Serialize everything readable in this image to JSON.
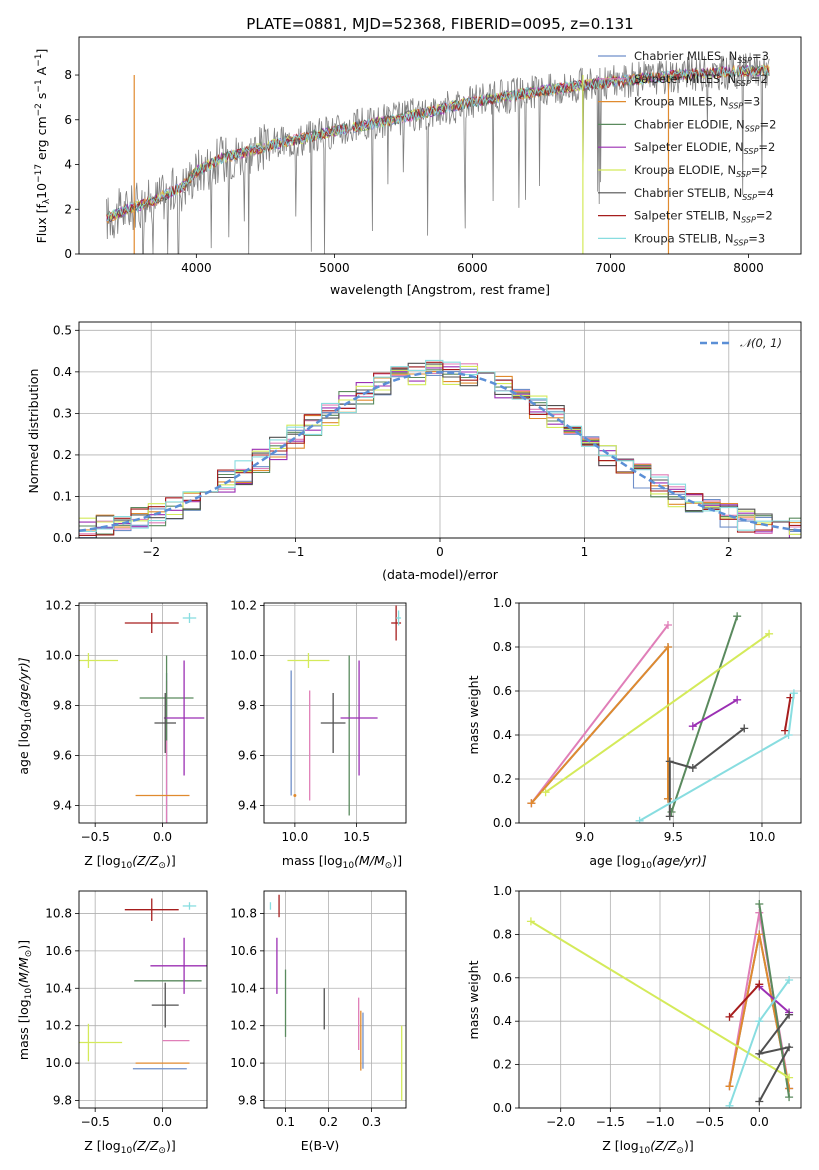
{
  "colors": {
    "chabrier_miles": "#6f8fc9",
    "salpeter_miles": "#e07fb8",
    "kroupa_miles": "#e08a2e",
    "chabrier_elodie": "#5a8a5e",
    "salpeter_elodie": "#9b2fb3",
    "kroupa_elodie": "#d4ea5a",
    "chabrier_stelib": "#505050",
    "salpeter_stelib": "#a61d1d",
    "kroupa_stelib": "#88dde0",
    "data": "#808080",
    "gauss": "#5b8fd6",
    "grid": "#b0b0b0"
  },
  "legend": [
    {
      "label": "Chabrier MILES, N",
      "sub": "SSP",
      "n": "=3",
      "color": "#6f8fc9"
    },
    {
      "label": "Salpeter MILES, N",
      "sub": "SSP",
      "n": "=2",
      "color": "#e07fb8"
    },
    {
      "label": "Kroupa MILES, N",
      "sub": "SSP",
      "n": "=3",
      "color": "#e08a2e"
    },
    {
      "label": "Chabrier ELODIE, N",
      "sub": "SSP",
      "n": "=2",
      "color": "#5a8a5e"
    },
    {
      "label": "Salpeter ELODIE, N",
      "sub": "SSP",
      "n": "=2",
      "color": "#9b2fb3"
    },
    {
      "label": "Kroupa ELODIE, N",
      "sub": "SSP",
      "n": "=2",
      "color": "#d4ea5a"
    },
    {
      "label": "Chabrier STELIB, N",
      "sub": "SSP",
      "n": "=4",
      "color": "#505050"
    },
    {
      "label": "Salpeter STELIB, N",
      "sub": "SSP",
      "n": "=2",
      "color": "#a61d1d"
    },
    {
      "label": "Kroupa STELIB, N",
      "sub": "SSP",
      "n": "=3",
      "color": "#88dde0"
    }
  ],
  "chart_data": [
    {
      "id": "spectrum",
      "type": "line",
      "title": "PLATE=0881, MJD=52368, FIBERID=0095, z=0.131",
      "xlabel": "wavelength [Angstrom, rest frame]",
      "ylabel": "Flux [f",
      "ylabel_parts": {
        "pre": "Flux [f",
        "sub": "λ",
        "mid": "10",
        "sup1": "−17",
        "unit": " erg cm",
        "sup2": "−2",
        "unit2": " s",
        "sup3": "−1",
        "unit3": " A",
        "sup4": "−1",
        "post": "]"
      },
      "xlim": [
        3150,
        8380
      ],
      "ylim": [
        0,
        9.7
      ],
      "xticks": [
        4000,
        5000,
        6000,
        7000,
        8000
      ],
      "yticks": [
        0,
        2,
        4,
        6,
        8
      ],
      "continuum": [
        [
          3350,
          1.6
        ],
        [
          3500,
          2.0
        ],
        [
          3700,
          2.4
        ],
        [
          3900,
          3.0
        ],
        [
          4000,
          3.7
        ],
        [
          4200,
          4.3
        ],
        [
          4500,
          4.8
        ],
        [
          5000,
          5.5
        ],
        [
          5500,
          6.1
        ],
        [
          6000,
          6.8
        ],
        [
          6500,
          7.3
        ],
        [
          7000,
          7.7
        ],
        [
          7500,
          8.0
        ],
        [
          8000,
          8.2
        ],
        [
          8150,
          8.2
        ]
      ]
    },
    {
      "id": "residuals",
      "type": "step",
      "xlabel": "(data-model)/error",
      "ylabel": "Normed distribution",
      "legend": "𝒩(0, 1)",
      "xlim": [
        -2.5,
        2.5
      ],
      "ylim": [
        0,
        0.52
      ],
      "xticks": [
        -2,
        -1,
        0,
        1,
        2
      ],
      "xticklabels": [
        "−2",
        "−1",
        "0",
        "1",
        "2"
      ],
      "yticks": [
        0,
        0.1,
        0.2,
        0.3,
        0.4,
        0.5
      ],
      "yticklabels": [
        "0.0",
        "0.1",
        "0.2",
        "0.3",
        "0.4",
        "0.5"
      ]
    },
    {
      "id": "age_vs_Z",
      "type": "errorbar",
      "xlabel": "Z [log",
      "xlabel_parts": {
        "pre": "Z [log",
        "sub": "10",
        "mid": "(Z/Z",
        "sub2": "⊙",
        "post": ")]"
      },
      "ylabel_parts": {
        "pre": "age  [log",
        "sub": "10",
        "post": "(age/yr)]"
      },
      "xlim": [
        -0.62,
        0.33
      ],
      "ylim": [
        9.33,
        10.21
      ],
      "xticks": [
        -0.5,
        0.0
      ],
      "xticklabels": [
        "−0.5",
        "0.0"
      ],
      "yticks": [
        9.4,
        9.6,
        9.8,
        10.0,
        10.2
      ],
      "yticklabels": [
        "9.4",
        "9.6",
        "9.8",
        "10.0",
        "10.2"
      ],
      "points": [
        {
          "model": "chabrier_miles",
          "x": 0.03,
          "xerr": 0.0,
          "y": 9.6,
          "yerr": 0.33
        },
        {
          "model": "salpeter_miles",
          "x": 0.03,
          "xerr": 0.0,
          "y": 9.6,
          "yerr": 0.3
        },
        {
          "model": "kroupa_miles",
          "x": 0.0,
          "xerr": 0.2,
          "y": 9.44,
          "yerr": 0.0
        },
        {
          "model": "chabrier_elodie",
          "x": 0.03,
          "xerr": 0.2,
          "y": 9.83,
          "yerr": 0.17
        },
        {
          "model": "salpeter_elodie",
          "x": 0.16,
          "xerr": 0.15,
          "y": 9.75,
          "yerr": 0.23
        },
        {
          "model": "kroupa_elodie",
          "x": -0.55,
          "xerr": 0.22,
          "y": 9.98,
          "yerr": 0.03
        },
        {
          "model": "chabrier_stelib",
          "x": 0.02,
          "xerr": 0.08,
          "y": 9.73,
          "yerr": 0.12
        },
        {
          "model": "salpeter_stelib",
          "x": -0.08,
          "xerr": 0.2,
          "y": 10.13,
          "yerr": 0.04
        },
        {
          "model": "kroupa_stelib",
          "x": 0.2,
          "xerr": 0.05,
          "y": 10.15,
          "yerr": 0.02
        }
      ]
    },
    {
      "id": "age_vs_mass",
      "type": "errorbar",
      "xlabel_parts": {
        "pre": "mass [log",
        "sub": "10",
        "post": "(M/M",
        "sub2": "⊙",
        "post2": ")]"
      },
      "xlim": [
        9.75,
        10.9
      ],
      "ylim": [
        9.33,
        10.21
      ],
      "xticks": [
        10.0,
        10.5
      ],
      "xticklabels": [
        "10.0",
        "10.5"
      ],
      "yticks": [
        9.4,
        9.6,
        9.8,
        10.0,
        10.2
      ],
      "yticklabels": [
        "9.4",
        "9.6",
        "9.8",
        "10.0",
        "10.2"
      ],
      "points": [
        {
          "model": "chabrier_miles",
          "x": 9.97,
          "xerr": 0.0,
          "y": 9.69,
          "yerr": 0.25
        },
        {
          "model": "salpeter_miles",
          "x": 10.12,
          "xerr": 0.0,
          "y": 9.64,
          "yerr": 0.22
        },
        {
          "model": "kroupa_miles",
          "x": 10.0,
          "xerr": 0.0,
          "y": 9.44,
          "yerr": 0.0
        },
        {
          "model": "chabrier_elodie",
          "x": 10.44,
          "xerr": 0.0,
          "y": 9.68,
          "yerr": 0.32
        },
        {
          "model": "salpeter_elodie",
          "x": 10.52,
          "xerr": 0.15,
          "y": 9.75,
          "yerr": 0.23
        },
        {
          "model": "kroupa_elodie",
          "x": 10.11,
          "xerr": 0.17,
          "y": 9.98,
          "yerr": 0.03
        },
        {
          "model": "chabrier_stelib",
          "x": 10.31,
          "xerr": 0.1,
          "y": 9.73,
          "yerr": 0.12
        },
        {
          "model": "salpeter_stelib",
          "x": 10.82,
          "xerr": 0.04,
          "y": 10.13,
          "yerr": 0.07
        },
        {
          "model": "kroupa_stelib",
          "x": 10.84,
          "xerr": 0.02,
          "y": 10.15,
          "yerr": 0.03
        }
      ]
    },
    {
      "id": "weight_vs_age",
      "type": "line",
      "xlabel_parts": {
        "pre": "age  [log",
        "sub": "10",
        "post": "(age/yr)]"
      },
      "ylabel": "mass weight",
      "xlim": [
        8.63,
        10.22
      ],
      "ylim": [
        0,
        1.0
      ],
      "xticks": [
        9.0,
        9.5,
        10.0
      ],
      "xticklabels": [
        "9.0",
        "9.5",
        "10.0"
      ],
      "yticks": [
        0,
        0.2,
        0.4,
        0.6,
        0.8,
        1.0
      ],
      "yticklabels": [
        "0.0",
        "0.2",
        "0.4",
        "0.6",
        "0.8",
        "1.0"
      ],
      "series": [
        {
          "model": "chabrier_miles",
          "x": [
            8.7,
            9.47,
            9.47
          ],
          "y": [
            0.09,
            0.8,
            0.11
          ]
        },
        {
          "model": "salpeter_miles",
          "x": [
            8.7,
            9.47
          ],
          "y": [
            0.09,
            0.9
          ]
        },
        {
          "model": "kroupa_miles",
          "x": [
            8.7,
            9.47,
            9.47
          ],
          "y": [
            0.09,
            0.8,
            0.11
          ]
        },
        {
          "model": "chabrier_elodie",
          "x": [
            9.49,
            9.86
          ],
          "y": [
            0.05,
            0.94
          ]
        },
        {
          "model": "salpeter_elodie",
          "x": [
            9.61,
            9.86
          ],
          "y": [
            0.44,
            0.56
          ]
        },
        {
          "model": "kroupa_elodie",
          "x": [
            8.78,
            10.04
          ],
          "y": [
            0.14,
            0.86
          ]
        },
        {
          "model": "chabrier_stelib",
          "x": [
            9.48,
            9.48,
            9.61,
            9.9
          ],
          "y": [
            0.03,
            0.28,
            0.25,
            0.43
          ]
        },
        {
          "model": "salpeter_stelib",
          "x": [
            10.13,
            10.16
          ],
          "y": [
            0.42,
            0.57
          ]
        },
        {
          "model": "kroupa_stelib",
          "x": [
            9.31,
            10.15,
            10.18
          ],
          "y": [
            0.01,
            0.4,
            0.59
          ]
        }
      ]
    },
    {
      "id": "mass_vs_Z",
      "type": "errorbar",
      "xlabel_parts": {
        "pre": "Z [log",
        "sub": "10",
        "post": "(Z/Z",
        "sub2": "⊙",
        "post2": ")]"
      },
      "ylabel_parts": {
        "pre": "mass [log",
        "sub": "10",
        "post": "(M/M",
        "sub2": "⊙",
        "post2": ")]"
      },
      "xlim": [
        -0.62,
        0.33
      ],
      "ylim": [
        9.76,
        10.92
      ],
      "xticks": [
        -0.5,
        0.0
      ],
      "xticklabels": [
        "−0.5",
        "0.0"
      ],
      "yticks": [
        9.8,
        10.0,
        10.2,
        10.4,
        10.6,
        10.8
      ],
      "yticklabels": [
        "9.8",
        "10.0",
        "10.2",
        "10.4",
        "10.6",
        "10.8"
      ],
      "points": [
        {
          "model": "chabrier_miles",
          "x": -0.02,
          "xerr": 0.2,
          "y": 9.97,
          "yerr": 0.0
        },
        {
          "model": "salpeter_miles",
          "x": 0.1,
          "xerr": 0.1,
          "y": 10.12,
          "yerr": 0.0
        },
        {
          "model": "kroupa_miles",
          "x": 0.0,
          "xerr": 0.2,
          "y": 10.0,
          "yerr": 0.0
        },
        {
          "model": "chabrier_elodie",
          "x": 0.04,
          "xerr": 0.25,
          "y": 10.44,
          "yerr": 0.0
        },
        {
          "model": "salpeter_elodie",
          "x": 0.16,
          "xerr": 0.25,
          "y": 10.52,
          "yerr": 0.15
        },
        {
          "model": "kroupa_elodie",
          "x": -0.55,
          "xerr": 0.25,
          "y": 10.11,
          "yerr": 0.1
        },
        {
          "model": "chabrier_stelib",
          "x": 0.02,
          "xerr": 0.1,
          "y": 10.31,
          "yerr": 0.12
        },
        {
          "model": "salpeter_stelib",
          "x": -0.08,
          "xerr": 0.2,
          "y": 10.82,
          "yerr": 0.06
        },
        {
          "model": "kroupa_stelib",
          "x": 0.2,
          "xerr": 0.05,
          "y": 10.84,
          "yerr": 0.02
        }
      ]
    },
    {
      "id": "mass_vs_ebv",
      "type": "errorbar",
      "xlabel": "E(B-V)",
      "xlim": [
        0.05,
        0.38
      ],
      "ylim": [
        9.76,
        10.92
      ],
      "xticks": [
        0.1,
        0.2,
        0.3
      ],
      "xticklabels": [
        "0.1",
        "0.2",
        "0.3"
      ],
      "yticks": [
        9.8,
        10.0,
        10.2,
        10.4,
        10.6,
        10.8
      ],
      "yticklabels": [
        "9.8",
        "10.0",
        "10.2",
        "10.4",
        "10.6",
        "10.8"
      ],
      "points": [
        {
          "model": "chabrier_miles",
          "x": 0.28,
          "xerr": 0.0,
          "y": 10.12,
          "yerr": 0.15
        },
        {
          "model": "salpeter_miles",
          "x": 0.27,
          "xerr": 0.0,
          "y": 10.21,
          "yerr": 0.14
        },
        {
          "model": "kroupa_miles",
          "x": 0.275,
          "xerr": 0.0,
          "y": 10.12,
          "yerr": 0.16
        },
        {
          "model": "chabrier_elodie",
          "x": 0.1,
          "xerr": 0.0,
          "y": 10.32,
          "yerr": 0.18
        },
        {
          "model": "salpeter_elodie",
          "x": 0.08,
          "xerr": 0.0,
          "y": 10.52,
          "yerr": 0.15
        },
        {
          "model": "kroupa_elodie",
          "x": 0.37,
          "xerr": 0.0,
          "y": 10.0,
          "yerr": 0.2
        },
        {
          "model": "chabrier_stelib",
          "x": 0.19,
          "xerr": 0.0,
          "y": 10.29,
          "yerr": 0.11
        },
        {
          "model": "salpeter_stelib",
          "x": 0.085,
          "xerr": 0.0,
          "y": 10.84,
          "yerr": 0.06
        },
        {
          "model": "kroupa_stelib",
          "x": 0.065,
          "xerr": 0.0,
          "y": 10.84,
          "yerr": 0.02
        }
      ]
    },
    {
      "id": "weight_vs_Z",
      "type": "line",
      "xlabel_parts": {
        "pre": "Z [log",
        "sub": "10",
        "post": "(Z/Z",
        "sub2": "⊙",
        "post2": ")]"
      },
      "ylabel": "mass weight",
      "xlim": [
        -2.42,
        0.42
      ],
      "ylim": [
        0,
        1.0
      ],
      "xticks": [
        -2.0,
        -1.5,
        -1.0,
        -0.5,
        0.0
      ],
      "xticklabels": [
        "−2.0",
        "−1.5",
        "−1.0",
        "−0.5",
        "0.0"
      ],
      "yticks": [
        0,
        0.2,
        0.4,
        0.6,
        0.8,
        1.0
      ],
      "yticklabels": [
        "0.0",
        "0.2",
        "0.4",
        "0.6",
        "0.8",
        "1.0"
      ],
      "series": [
        {
          "model": "chabrier_miles",
          "x": [
            -0.3,
            0.0,
            0.3
          ],
          "y": [
            0.1,
            0.8,
            0.09
          ]
        },
        {
          "model": "salpeter_miles",
          "x": [
            -0.3,
            0.0,
            0.3
          ],
          "y": [
            0.1,
            0.9,
            0.09
          ]
        },
        {
          "model": "kroupa_miles",
          "x": [
            -0.3,
            0.0,
            0.3
          ],
          "y": [
            0.1,
            0.8,
            0.09
          ]
        },
        {
          "model": "chabrier_elodie",
          "x": [
            0.0,
            0.3
          ],
          "y": [
            0.94,
            0.05
          ]
        },
        {
          "model": "salpeter_elodie",
          "x": [
            0.0,
            0.3
          ],
          "y": [
            0.56,
            0.44
          ]
        },
        {
          "model": "kroupa_elodie",
          "x": [
            -2.3,
            0.3
          ],
          "y": [
            0.86,
            0.14
          ]
        },
        {
          "model": "chabrier_stelib",
          "x": [
            0.0,
            0.3,
            0.0,
            0.3
          ],
          "y": [
            0.03,
            0.28,
            0.25,
            0.43
          ]
        },
        {
          "model": "salpeter_stelib",
          "x": [
            -0.3,
            0.0
          ],
          "y": [
            0.42,
            0.57
          ]
        },
        {
          "model": "kroupa_stelib",
          "x": [
            -0.3,
            0.0,
            0.3
          ],
          "y": [
            0.01,
            0.4,
            0.59
          ]
        }
      ]
    }
  ]
}
